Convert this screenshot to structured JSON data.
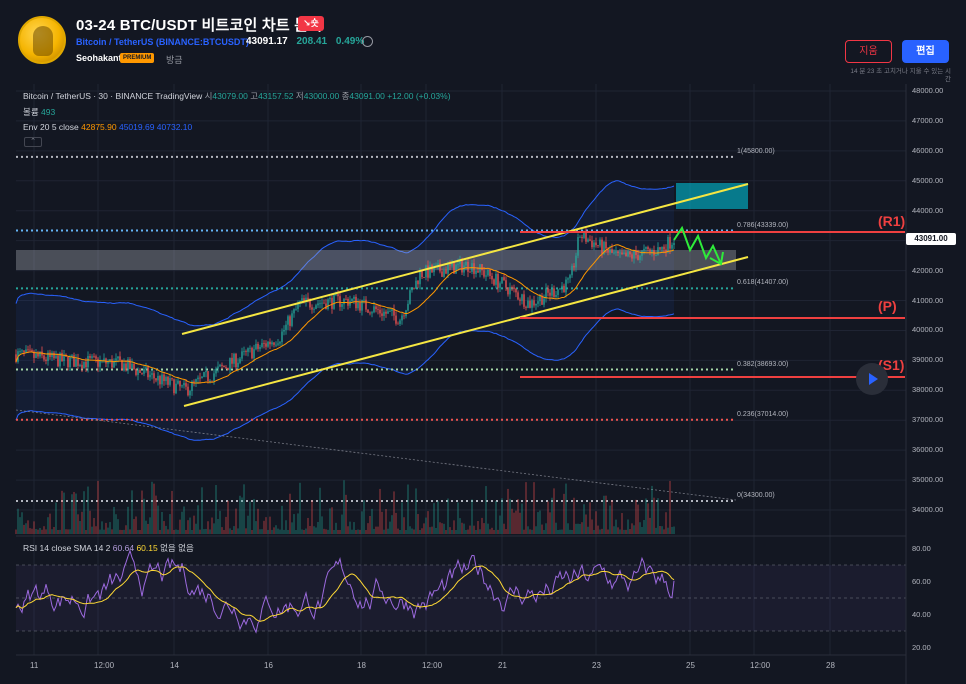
{
  "header": {
    "title": "03-24 BTC/USDT 비트코인 차트 분석",
    "direction_tag": "↘숏",
    "pair_name": "Bitcoin / TetherUS",
    "exchange_symbol": "(BINANCE:BTCUSDT)",
    "price": "43091.17",
    "change": "208.41",
    "change_pct": "0.49%",
    "author": "Seohakant",
    "premium": "PREMIUM",
    "time_ago": "방금",
    "delete_label": "지움",
    "edit_label": "편집",
    "edit_note": "14 분 23 초 고치거나 지울 수 있는 시간"
  },
  "legend": {
    "symbol_line": "Bitcoin / TetherUS · 30 · BINANCE  TradingView",
    "o_label": "시",
    "o_val": "43079.00",
    "h_label": "고",
    "h_val": "43157.52",
    "l_label": "저",
    "l_val": "43000.00",
    "c_label": "종",
    "c_val": "43091.00",
    "chg": "+12.00 (+0.03%)",
    "volume_label": "볼륨",
    "volume_val": "493",
    "env_label": "Env 20 5 close",
    "env_mid": "42875.90",
    "env_up": "45019.69",
    "env_low": "40732.10",
    "collapse": "⌃",
    "rsi_label": "RSI 14 close SMA 14 2",
    "rsi_val": "60.64",
    "rsi_sma": "60.15",
    "rsi_n1": "없음",
    "rsi_n2": "없음"
  },
  "price_axis": [
    "48000.00",
    "47000.00",
    "46000.00",
    "45000.00",
    "44000.00",
    "43000.00",
    "42000.00",
    "41000.00",
    "40000.00",
    "39000.00",
    "38000.00",
    "37000.00",
    "36000.00",
    "35000.00",
    "34000.00"
  ],
  "current_price_tag": "43091.00",
  "rsi_axis": [
    "80.00",
    "60.00",
    "40.00",
    "20.00"
  ],
  "time_axis": [
    "11",
    "12:00",
    "14",
    "16",
    "18",
    "12:00",
    "21",
    "23",
    "25",
    "12:00",
    "28"
  ],
  "fib_levels": [
    {
      "label": "1(45800.00)"
    },
    {
      "label": "0.786(43339.00)"
    },
    {
      "label": "0.618(41407.00)"
    },
    {
      "label": "0.382(38693.00)"
    },
    {
      "label": "0.236(37014.00)"
    },
    {
      "label": "0(34300.00)"
    }
  ],
  "levels": {
    "r1": "(R1)",
    "p": "(P)",
    "s1": "(S1)"
  },
  "colors": {
    "background": "#131722",
    "up": "#26a69a",
    "down": "#ef5350",
    "channel": "#f5e642",
    "resistance": "#ef4040",
    "envelope": "#2962ff",
    "rsi": "#9c6ade",
    "accent": "#2962ff"
  },
  "icons": {
    "clock": "alarm-clock-icon",
    "play": "play-icon"
  }
}
